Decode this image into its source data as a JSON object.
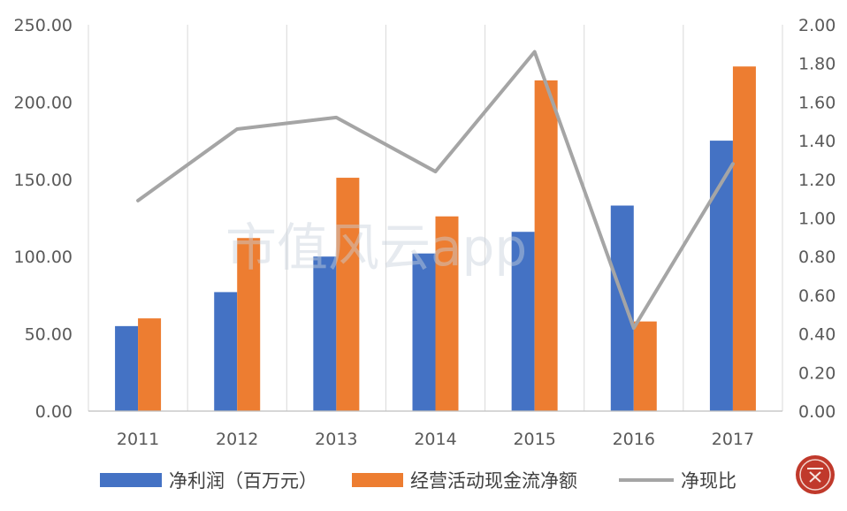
{
  "chart_data": {
    "type": "bar",
    "categories": [
      "2011",
      "2012",
      "2013",
      "2014",
      "2015",
      "2016",
      "2017"
    ],
    "series": [
      {
        "name": "净利润（百万元）",
        "type": "bar",
        "axis": "left",
        "color": "#4472c4",
        "values": [
          55,
          77,
          100,
          102,
          116,
          133,
          175
        ]
      },
      {
        "name": "经营活动现金流净额",
        "type": "bar",
        "axis": "left",
        "color": "#ed7d31",
        "values": [
          60,
          112,
          151,
          126,
          214,
          58,
          223
        ]
      },
      {
        "name": "净现比",
        "type": "line",
        "axis": "right",
        "color": "#a5a5a5",
        "values": [
          1.09,
          1.46,
          1.52,
          1.24,
          1.86,
          0.43,
          1.28
        ]
      }
    ],
    "y_left": {
      "min": 0,
      "max": 250,
      "step": 50,
      "ticks": [
        "0.00",
        "50.00",
        "100.00",
        "150.00",
        "200.00",
        "250.00"
      ]
    },
    "y_right": {
      "min": 0,
      "max": 2,
      "step": 0.2,
      "ticks": [
        "0.00",
        "0.20",
        "0.40",
        "0.60",
        "0.80",
        "1.00",
        "1.20",
        "1.40",
        "1.60",
        "1.80",
        "2.00"
      ]
    },
    "grid": "vertical",
    "legend_position": "bottom",
    "watermark": "市值风云app"
  }
}
